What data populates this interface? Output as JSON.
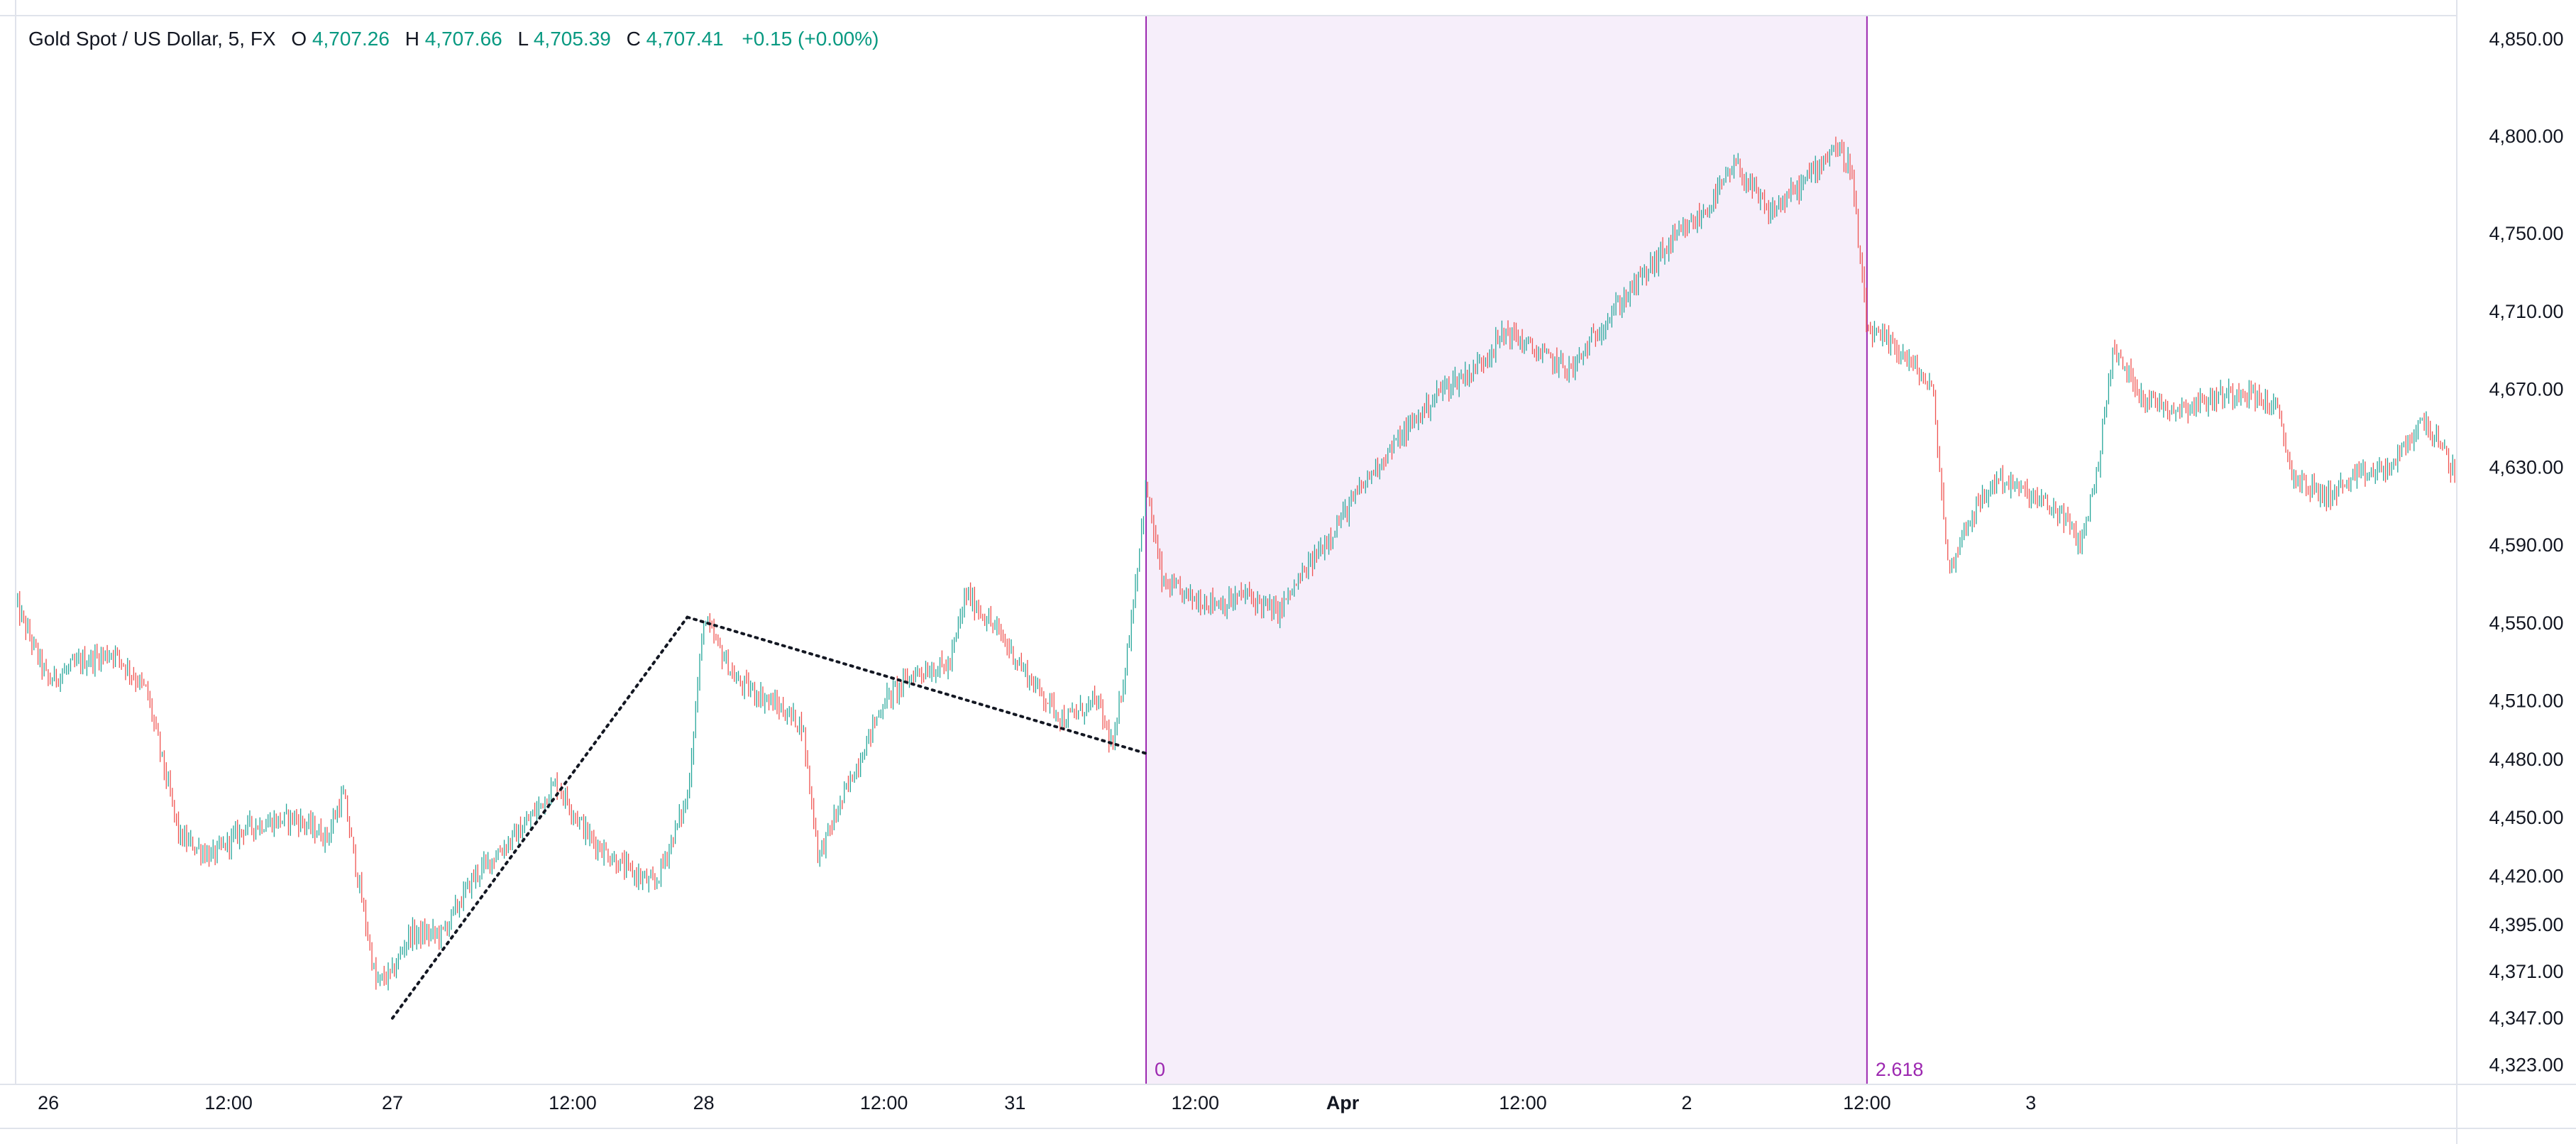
{
  "legend": {
    "symbol": "Gold Spot / US Dollar, 5, FX",
    "open_label": "O",
    "open_value": "4,707.26",
    "high_label": "H",
    "high_value": "4,707.66",
    "low_label": "L",
    "low_value": "4,705.39",
    "close_label": "C",
    "close_value": "4,707.41",
    "change": "+0.15 (+0.00%)"
  },
  "colors": {
    "up": "#26a69a",
    "down": "#ef5350",
    "fib_line": "#9c27b0",
    "fib_fill": "#f6eefa",
    "pattern_line": "#131722",
    "axis_border": "#e0e3eb"
  },
  "fib_labels": {
    "start": "0",
    "end": "2.618"
  },
  "chart_data": {
    "type": "candlestick",
    "title": "Gold Spot / US Dollar, 5, FX",
    "x_tick_labels": [
      "26",
      "12:00",
      "27",
      "12:00",
      "28",
      "12:00",
      "31",
      "12:00",
      "Apr",
      "12:00",
      "2",
      "12:00",
      "3"
    ],
    "y_tick_labels": [
      "4,850.00",
      "4,800.00",
      "4,750.00",
      "4,710.00",
      "4,670.00",
      "4,630.00",
      "4,590.00",
      "4,550.00",
      "4,510.00",
      "4,480.00",
      "4,450.00",
      "4,420.00",
      "4,395.00",
      "4,371.00",
      "4,347.00",
      "4,323.00"
    ],
    "y_ticks": [
      4850,
      4800,
      4750,
      4710,
      4670,
      4630,
      4590,
      4550,
      4510,
      4480,
      4450,
      4420,
      4395,
      4371,
      4347,
      4323
    ],
    "ylim": [
      4313,
      4862
    ],
    "x_index_range": [
      0,
      149
    ],
    "x_tick_index": [
      2,
      13,
      23,
      34,
      42,
      53,
      61,
      72,
      81,
      92,
      102,
      113,
      123
    ],
    "price_path": [
      [
        0,
        4560
      ],
      [
        2,
        4520
      ],
      [
        4,
        4530
      ],
      [
        6,
        4535
      ],
      [
        8,
        4515
      ],
      [
        10,
        4440
      ],
      [
        12,
        4430
      ],
      [
        14,
        4445
      ],
      [
        17,
        4450
      ],
      [
        19,
        4440
      ],
      [
        20,
        4462
      ],
      [
        22,
        4365
      ],
      [
        23,
        4370
      ],
      [
        24,
        4390
      ],
      [
        26,
        4390
      ],
      [
        28,
        4420
      ],
      [
        31,
        4445
      ],
      [
        33,
        4468
      ],
      [
        35,
        4440
      ],
      [
        37,
        4425
      ],
      [
        39,
        4415
      ],
      [
        41,
        4460
      ],
      [
        42,
        4552
      ],
      [
        44,
        4520
      ],
      [
        46,
        4510
      ],
      [
        48,
        4498
      ],
      [
        49,
        4430
      ],
      [
        51,
        4470
      ],
      [
        53,
        4510
      ],
      [
        55,
        4525
      ],
      [
        57,
        4528
      ],
      [
        58,
        4565
      ],
      [
        60,
        4545
      ],
      [
        62,
        4520
      ],
      [
        64,
        4500
      ],
      [
        66,
        4510
      ],
      [
        67,
        4485
      ],
      [
        68,
        4545
      ],
      [
        69,
        4620
      ],
      [
        70,
        4570
      ],
      [
        72,
        4562
      ],
      [
        74,
        4560
      ],
      [
        75,
        4565
      ],
      [
        77,
        4555
      ],
      [
        79,
        4580
      ],
      [
        81,
        4605
      ],
      [
        83,
        4630
      ],
      [
        85,
        4650
      ],
      [
        87,
        4670
      ],
      [
        89,
        4680
      ],
      [
        91,
        4700
      ],
      [
        93,
        4688
      ],
      [
        95,
        4680
      ],
      [
        97,
        4705
      ],
      [
        99,
        4725
      ],
      [
        101,
        4745
      ],
      [
        103,
        4760
      ],
      [
        105,
        4785
      ],
      [
        107,
        4760
      ],
      [
        109,
        4775
      ],
      [
        111,
        4795
      ],
      [
        112,
        4785
      ],
      [
        113,
        4700
      ],
      [
        115,
        4690
      ],
      [
        117,
        4670
      ],
      [
        118,
        4575
      ],
      [
        119,
        4600
      ],
      [
        121,
        4625
      ],
      [
        123,
        4615
      ],
      [
        125,
        4605
      ],
      [
        126,
        4590
      ],
      [
        127,
        4625
      ],
      [
        128,
        4690
      ],
      [
        130,
        4665
      ],
      [
        132,
        4660
      ],
      [
        134,
        4665
      ],
      [
        136,
        4670
      ],
      [
        138,
        4660
      ],
      [
        139,
        4625
      ],
      [
        141,
        4615
      ],
      [
        143,
        4625
      ],
      [
        145,
        4630
      ],
      [
        147,
        4655
      ],
      [
        149,
        4625
      ]
    ],
    "last_close": 4707.41,
    "fib_time_zone": {
      "start_index": 69,
      "end_index": 113,
      "levels": [
        "0",
        "2.618"
      ]
    },
    "pattern_points": [
      [
        23,
        4347
      ],
      [
        41,
        4553
      ],
      [
        69,
        4483
      ]
    ]
  }
}
